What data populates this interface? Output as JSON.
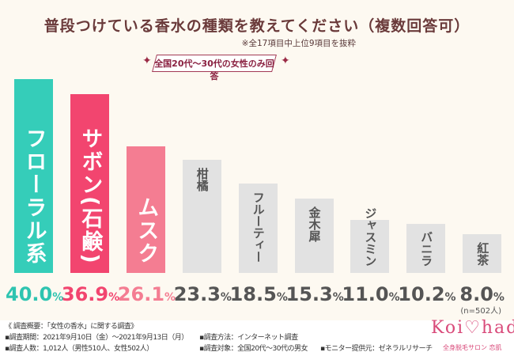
{
  "header": {
    "title": "普段つけている香水の種類を教えてください（複数回答可）",
    "note": "※全17項目中上位9項目を抜粋",
    "badge": "全国20代～30代の女性のみ回答"
  },
  "chart_data": {
    "type": "bar",
    "title": "普段つけている香水の種類を教えてください（複数回答可）",
    "categories": [
      "フローラル系",
      "サボン(石鹸)",
      "ムスク",
      "柑橘",
      "フルーティー",
      "金木犀",
      "ジャスミン",
      "バニラ",
      "紅茶"
    ],
    "values": [
      40.0,
      36.9,
      26.1,
      23.3,
      18.5,
      15.3,
      11.0,
      10.2,
      8.0
    ],
    "value_labels": [
      "40.0",
      "36.9",
      "26.1",
      "23.3",
      "18.5",
      "15.3",
      "11.0",
      "10.2",
      "8.0"
    ],
    "unit": "%",
    "colors": [
      "#35cdb9",
      "#f2456f",
      "#f47d92",
      "#e2e2e2",
      "#e2e2e2",
      "#e2e2e2",
      "#e2e2e2",
      "#e2e2e2",
      "#e2e2e2"
    ],
    "value_colors": [
      "#2ec4b0",
      "#f2456f",
      "#f47d92",
      "#555555",
      "#555555",
      "#555555",
      "#555555",
      "#555555",
      "#555555"
    ],
    "ylim": [
      0,
      40
    ],
    "sample": "(n=502人)"
  },
  "footer": {
    "overview": "《 調査概要：「女性の香水」に関する調査》",
    "period": "▪調査期間：2021年9月10日（金）～2021年9月13日（月）",
    "people": "▪調査人数：1,012人（男性510人、女性502人）",
    "method": "▪調査方法：インターネット調査",
    "target": "▪調査対象：全国20代～30代の男女",
    "monitor": "▪モニター提供元：ゼネラルリサーチ",
    "logo": "Koi♡hada",
    "logo_sub": "全身脱毛サロン 恋肌"
  }
}
